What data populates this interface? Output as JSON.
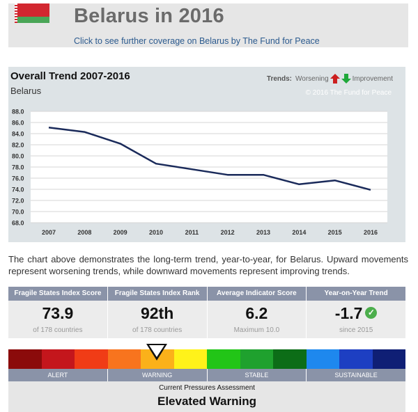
{
  "header": {
    "title": "Belarus in 2016",
    "link_text": "Click to see further coverage on Belarus by The Fund for Peace",
    "flag_icon": "belarus-flag-icon"
  },
  "chart_data": {
    "type": "line",
    "title": "Overall Trend 2007-2016",
    "subtitle": "Belarus",
    "legend_label": "Trends:",
    "legend_worsening": "Worsening",
    "legend_improvement": "Improvement",
    "copyright": "© 2016 The Fund for Peace",
    "x": [
      "2007",
      "2008",
      "2009",
      "2010",
      "2011",
      "2012",
      "2013",
      "2014",
      "2015",
      "2016"
    ],
    "y_ticks": [
      "88.0",
      "86.0",
      "84.0",
      "82.0",
      "80.0",
      "78.0",
      "76.0",
      "74.0",
      "72.0",
      "70.0",
      "68.0"
    ],
    "ylim": [
      68,
      88
    ],
    "series": [
      {
        "values": [
          85.1,
          84.3,
          82.2,
          78.6,
          77.6,
          76.6,
          76.6,
          74.9,
          75.6,
          73.9
        ]
      }
    ],
    "line_color": "#1a2a5a",
    "grid": true
  },
  "description": "The chart above demonstrates the long-term trend, year-to-year, for Belarus. Upward movements represent worsening trends, while downward movements represent improving trends.",
  "stats": [
    {
      "label": "Fragile States Index Score",
      "value": "73.9",
      "note": "of 178 countries"
    },
    {
      "label": "Fragile States Index Rank",
      "value": "92th",
      "note": "of 178 countries"
    },
    {
      "label": "Average Indicator Score",
      "value": "6.2",
      "note": "Maximum 10.0"
    },
    {
      "label": "Year-on-Year Trend",
      "value": "-1.7",
      "note": "since 2015",
      "icon": "check-circle-icon"
    }
  ],
  "scale": {
    "colors": [
      "#8b0b0b",
      "#c4161c",
      "#f03c16",
      "#f8741e",
      "#fbb11a",
      "#fff21a",
      "#22c517",
      "#1fa12e",
      "#0c6d17",
      "#1e88ee",
      "#1d3fc2",
      "#0f1f75"
    ],
    "labels": [
      "ALERT",
      "WARNING",
      "STABLE",
      "SUSTAINABLE"
    ]
  },
  "assessment": {
    "label": "Current Pressures Assessment",
    "value": "Elevated Warning"
  }
}
